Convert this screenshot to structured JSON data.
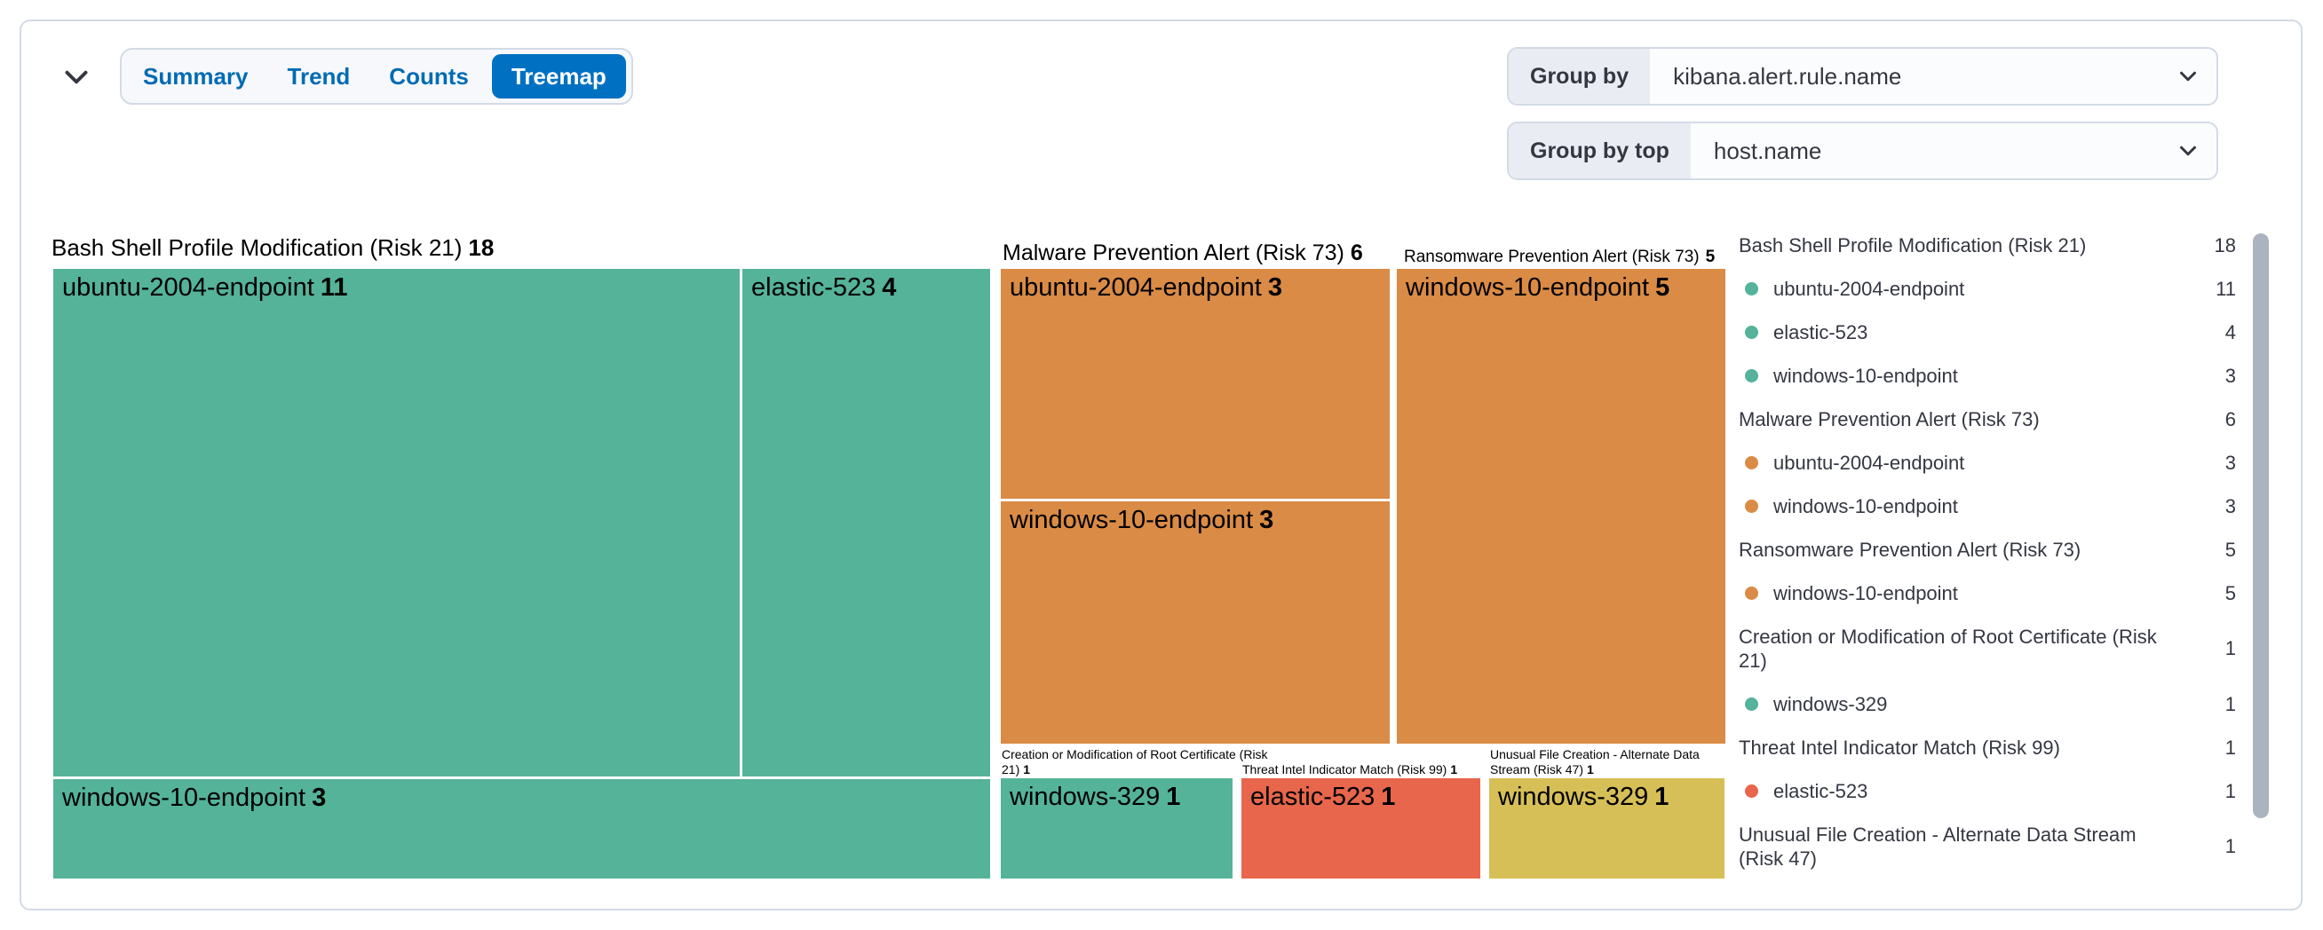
{
  "header": {
    "tabs": [
      "Summary",
      "Trend",
      "Counts",
      "Treemap"
    ],
    "selected_tab": "Treemap",
    "group_by": {
      "label": "Group by",
      "value": "kibana.alert.rule.name"
    },
    "group_by_top": {
      "label": "Group by top",
      "value": "host.name"
    }
  },
  "colors": {
    "low": "#54B399",
    "medium": "#D6BF57",
    "high": "#DA8B45",
    "critical": "#E7664C",
    "selected_tab_bg": "#0071C2",
    "tab_text": "#006BB4"
  },
  "chart_data": {
    "type": "treemap",
    "groups": [
      {
        "name": "Bash Shell Profile Modification (Risk 21)",
        "total": 18,
        "severity": "low",
        "children": [
          {
            "name": "ubuntu-2004-endpoint",
            "value": 11
          },
          {
            "name": "elastic-523",
            "value": 4
          },
          {
            "name": "windows-10-endpoint",
            "value": 3
          }
        ]
      },
      {
        "name": "Malware Prevention Alert (Risk 73)",
        "total": 6,
        "severity": "high",
        "children": [
          {
            "name": "ubuntu-2004-endpoint",
            "value": 3
          },
          {
            "name": "windows-10-endpoint",
            "value": 3
          }
        ]
      },
      {
        "name": "Ransomware Prevention Alert (Risk 73)",
        "total": 5,
        "severity": "high",
        "children": [
          {
            "name": "windows-10-endpoint",
            "value": 5
          }
        ]
      },
      {
        "name": "Creation or Modification of Root Certificate (Risk 21)",
        "total": 1,
        "severity": "low",
        "children": [
          {
            "name": "windows-329",
            "value": 1
          }
        ]
      },
      {
        "name": "Threat Intel Indicator Match (Risk 99)",
        "total": 1,
        "severity": "critical",
        "children": [
          {
            "name": "elastic-523",
            "value": 1
          }
        ]
      },
      {
        "name": "Unusual File Creation - Alternate Data Stream (Risk 47)",
        "total": 1,
        "severity": "medium",
        "children": [
          {
            "name": "windows-329",
            "value": 1
          }
        ]
      }
    ],
    "legend": [
      {
        "label": "Bash Shell Profile Modification (Risk 21)",
        "value": 18,
        "dot": null
      },
      {
        "label": "ubuntu-2004-endpoint",
        "value": 11,
        "dot": "low"
      },
      {
        "label": "elastic-523",
        "value": 4,
        "dot": "low"
      },
      {
        "label": "windows-10-endpoint",
        "value": 3,
        "dot": "low"
      },
      {
        "label": "Malware Prevention Alert (Risk 73)",
        "value": 6,
        "dot": null
      },
      {
        "label": "ubuntu-2004-endpoint",
        "value": 3,
        "dot": "high"
      },
      {
        "label": "windows-10-endpoint",
        "value": 3,
        "dot": "high"
      },
      {
        "label": "Ransomware Prevention Alert (Risk 73)",
        "value": 5,
        "dot": null
      },
      {
        "label": "windows-10-endpoint",
        "value": 5,
        "dot": "high"
      },
      {
        "label": "Creation or Modification of Root Certificate (Risk 21)",
        "value": 1,
        "dot": null
      },
      {
        "label": "windows-329",
        "value": 1,
        "dot": "low"
      },
      {
        "label": "Threat Intel Indicator Match (Risk 99)",
        "value": 1,
        "dot": null
      },
      {
        "label": "elastic-523",
        "value": 1,
        "dot": "critical"
      },
      {
        "label": "Unusual File Creation - Alternate Data Stream (Risk 47)",
        "value": 1,
        "dot": null
      }
    ]
  }
}
